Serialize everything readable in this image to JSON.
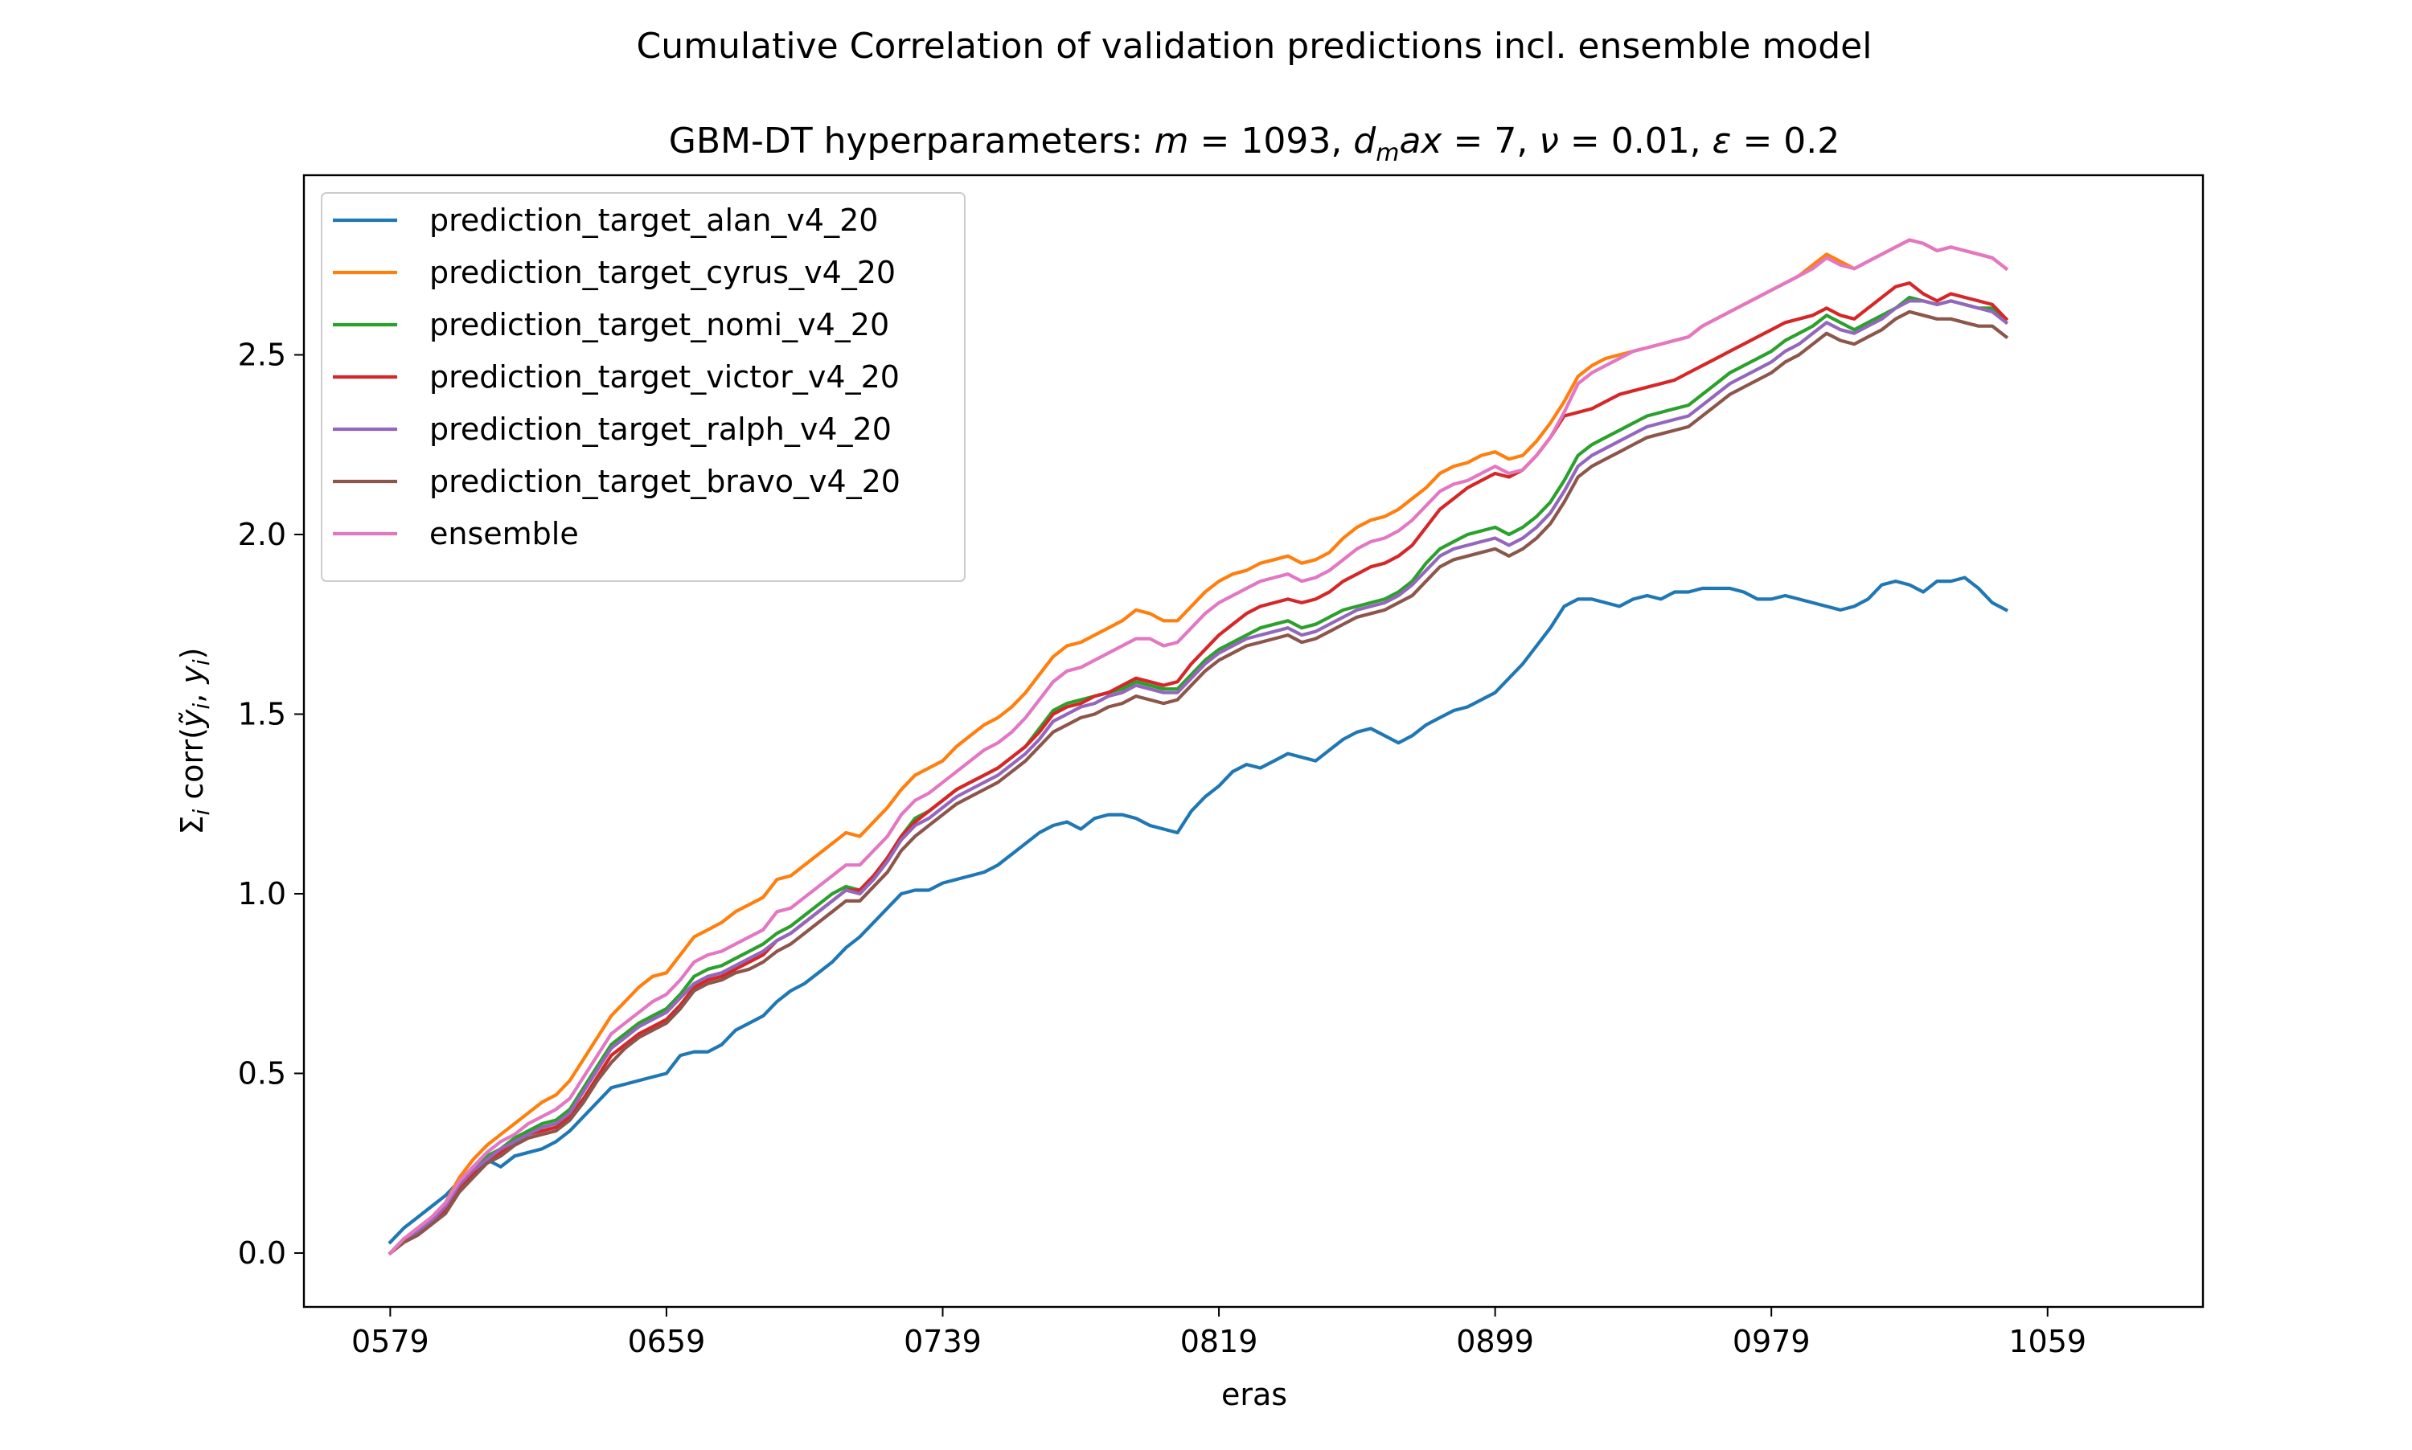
{
  "chart_data": {
    "type": "line",
    "suptitle": "Cumulative Correlation of validation predictions incl. ensemble model",
    "title": "GBM-DT hyperparameters: m = 1093, d_max = 7, ν = 0.01, ε = 0.2",
    "title_parts": {
      "prefix": "GBM-DT hyperparameters: ",
      "m_sym": "m",
      "m_val": " = 1093, ",
      "d_sym": "d",
      "d_sub": "m",
      "d_rest": "ax",
      "d_val": " = 7, ",
      "nu_sym": "ν",
      "nu_val": " = 0.01, ",
      "eps_sym": "ε",
      "eps_val": " = 0.2"
    },
    "xlabel": "eras",
    "ylabel_parts": {
      "sigma": "Σ",
      "i1": "i",
      "corr": " corr(",
      "yhat": "ỹ",
      "i2": "i",
      "sep": ", ",
      "y": "y",
      "i3": "i",
      "close": ")"
    },
    "xlim": [
      554,
      1104
    ],
    "ylim": [
      -0.15,
      3.0
    ],
    "x_ticks": [
      579,
      659,
      739,
      819,
      899,
      979,
      1059
    ],
    "x_tick_labels": [
      "0579",
      "0659",
      "0739",
      "0819",
      "0899",
      "0979",
      "1059"
    ],
    "y_ticks": [
      0.0,
      0.5,
      1.0,
      1.5,
      2.0,
      2.5
    ],
    "y_tick_labels": [
      "0.0",
      "0.5",
      "1.0",
      "1.5",
      "2.0",
      "2.5"
    ],
    "grid": false,
    "legend_position": "upper-left",
    "x_start": 579,
    "x_step": 4,
    "series": [
      {
        "name": "prediction_target_alan_v4_20",
        "color": "#1f77b4",
        "values": [
          0.03,
          0.07,
          0.1,
          0.13,
          0.16,
          0.2,
          0.22,
          0.26,
          0.24,
          0.27,
          0.28,
          0.29,
          0.31,
          0.34,
          0.38,
          0.42,
          0.46,
          0.47,
          0.48,
          0.49,
          0.5,
          0.55,
          0.56,
          0.56,
          0.58,
          0.62,
          0.64,
          0.66,
          0.7,
          0.73,
          0.75,
          0.78,
          0.81,
          0.85,
          0.88,
          0.92,
          0.96,
          1.0,
          1.01,
          1.01,
          1.03,
          1.04,
          1.05,
          1.06,
          1.08,
          1.11,
          1.14,
          1.17,
          1.19,
          1.2,
          1.18,
          1.21,
          1.22,
          1.22,
          1.21,
          1.19,
          1.18,
          1.17,
          1.23,
          1.27,
          1.3,
          1.34,
          1.36,
          1.35,
          1.37,
          1.39,
          1.38,
          1.37,
          1.4,
          1.43,
          1.45,
          1.46,
          1.44,
          1.42,
          1.44,
          1.47,
          1.49,
          1.51,
          1.52,
          1.54,
          1.56,
          1.6,
          1.64,
          1.69,
          1.74,
          1.8,
          1.82,
          1.82,
          1.81,
          1.8,
          1.82,
          1.83,
          1.82,
          1.84,
          1.84,
          1.85,
          1.85,
          1.85,
          1.84,
          1.82,
          1.82,
          1.83,
          1.82,
          1.81,
          1.8,
          1.79,
          1.8,
          1.82,
          1.86,
          1.87,
          1.86,
          1.84,
          1.87,
          1.87,
          1.88,
          1.85,
          1.81,
          1.79
        ]
      },
      {
        "name": "prediction_target_cyrus_v4_20",
        "color": "#ff7f0e",
        "values": [
          0.0,
          0.04,
          0.07,
          0.1,
          0.14,
          0.21,
          0.26,
          0.3,
          0.33,
          0.36,
          0.39,
          0.42,
          0.44,
          0.48,
          0.54,
          0.6,
          0.66,
          0.7,
          0.74,
          0.77,
          0.78,
          0.83,
          0.88,
          0.9,
          0.92,
          0.95,
          0.97,
          0.99,
          1.04,
          1.05,
          1.08,
          1.11,
          1.14,
          1.17,
          1.16,
          1.2,
          1.24,
          1.29,
          1.33,
          1.35,
          1.37,
          1.41,
          1.44,
          1.47,
          1.49,
          1.52,
          1.56,
          1.61,
          1.66,
          1.69,
          1.7,
          1.72,
          1.74,
          1.76,
          1.79,
          1.78,
          1.76,
          1.76,
          1.8,
          1.84,
          1.87,
          1.89,
          1.9,
          1.92,
          1.93,
          1.94,
          1.92,
          1.93,
          1.95,
          1.99,
          2.02,
          2.04,
          2.05,
          2.07,
          2.1,
          2.13,
          2.17,
          2.19,
          2.2,
          2.22,
          2.23,
          2.21,
          2.22,
          2.26,
          2.31,
          2.37,
          2.44,
          2.47,
          2.49,
          2.5,
          2.51,
          2.52,
          2.53,
          2.54,
          2.55,
          2.58,
          2.6,
          2.62,
          2.64,
          2.66,
          2.68,
          2.7,
          2.72,
          2.75,
          2.78,
          2.76,
          2.74,
          2.76,
          2.78,
          2.8,
          2.82,
          2.81,
          2.79,
          2.8,
          2.79,
          2.78,
          2.77,
          2.74
        ]
      },
      {
        "name": "prediction_target_nomi_v4_20",
        "color": "#2ca02c",
        "values": [
          0.0,
          0.04,
          0.06,
          0.09,
          0.13,
          0.19,
          0.23,
          0.27,
          0.29,
          0.32,
          0.34,
          0.36,
          0.37,
          0.4,
          0.46,
          0.52,
          0.58,
          0.61,
          0.64,
          0.66,
          0.68,
          0.72,
          0.77,
          0.79,
          0.8,
          0.82,
          0.84,
          0.86,
          0.89,
          0.91,
          0.94,
          0.97,
          1.0,
          1.02,
          1.01,
          1.05,
          1.1,
          1.16,
          1.21,
          1.23,
          1.26,
          1.29,
          1.31,
          1.33,
          1.35,
          1.38,
          1.41,
          1.46,
          1.51,
          1.53,
          1.54,
          1.55,
          1.56,
          1.57,
          1.59,
          1.58,
          1.57,
          1.57,
          1.61,
          1.65,
          1.68,
          1.7,
          1.72,
          1.74,
          1.75,
          1.76,
          1.74,
          1.75,
          1.77,
          1.79,
          1.8,
          1.81,
          1.82,
          1.84,
          1.87,
          1.92,
          1.96,
          1.98,
          2.0,
          2.01,
          2.02,
          2.0,
          2.02,
          2.05,
          2.09,
          2.15,
          2.22,
          2.25,
          2.27,
          2.29,
          2.31,
          2.33,
          2.34,
          2.35,
          2.36,
          2.39,
          2.42,
          2.45,
          2.47,
          2.49,
          2.51,
          2.54,
          2.56,
          2.58,
          2.61,
          2.59,
          2.57,
          2.59,
          2.61,
          2.63,
          2.66,
          2.65,
          2.64,
          2.65,
          2.64,
          2.63,
          2.63,
          2.6
        ]
      },
      {
        "name": "prediction_target_victor_v4_20",
        "color": "#d62728",
        "values": [
          0.0,
          0.03,
          0.05,
          0.08,
          0.12,
          0.18,
          0.22,
          0.26,
          0.28,
          0.31,
          0.33,
          0.34,
          0.35,
          0.38,
          0.43,
          0.49,
          0.55,
          0.58,
          0.61,
          0.63,
          0.65,
          0.69,
          0.74,
          0.76,
          0.77,
          0.79,
          0.81,
          0.83,
          0.87,
          0.89,
          0.92,
          0.95,
          0.98,
          1.01,
          1.01,
          1.05,
          1.1,
          1.16,
          1.2,
          1.23,
          1.26,
          1.29,
          1.31,
          1.33,
          1.35,
          1.38,
          1.41,
          1.45,
          1.5,
          1.52,
          1.53,
          1.55,
          1.56,
          1.58,
          1.6,
          1.59,
          1.58,
          1.59,
          1.64,
          1.68,
          1.72,
          1.75,
          1.78,
          1.8,
          1.81,
          1.82,
          1.81,
          1.82,
          1.84,
          1.87,
          1.89,
          1.91,
          1.92,
          1.94,
          1.97,
          2.02,
          2.07,
          2.1,
          2.13,
          2.15,
          2.17,
          2.16,
          2.18,
          2.22,
          2.27,
          2.33,
          2.34,
          2.35,
          2.37,
          2.39,
          2.4,
          2.41,
          2.42,
          2.43,
          2.45,
          2.47,
          2.49,
          2.51,
          2.53,
          2.55,
          2.57,
          2.59,
          2.6,
          2.61,
          2.63,
          2.61,
          2.6,
          2.63,
          2.66,
          2.69,
          2.7,
          2.67,
          2.65,
          2.67,
          2.66,
          2.65,
          2.64,
          2.6
        ]
      },
      {
        "name": "prediction_target_ralph_v4_20",
        "color": "#9467bd",
        "values": [
          0.0,
          0.04,
          0.06,
          0.09,
          0.13,
          0.19,
          0.23,
          0.26,
          0.29,
          0.31,
          0.33,
          0.35,
          0.36,
          0.39,
          0.45,
          0.51,
          0.57,
          0.6,
          0.63,
          0.65,
          0.67,
          0.71,
          0.75,
          0.77,
          0.78,
          0.8,
          0.82,
          0.84,
          0.87,
          0.89,
          0.92,
          0.95,
          0.98,
          1.01,
          1.0,
          1.04,
          1.09,
          1.15,
          1.19,
          1.21,
          1.24,
          1.27,
          1.29,
          1.31,
          1.33,
          1.36,
          1.39,
          1.43,
          1.48,
          1.5,
          1.52,
          1.53,
          1.55,
          1.56,
          1.58,
          1.57,
          1.56,
          1.56,
          1.6,
          1.64,
          1.67,
          1.69,
          1.71,
          1.72,
          1.73,
          1.74,
          1.72,
          1.73,
          1.75,
          1.77,
          1.79,
          1.8,
          1.81,
          1.83,
          1.86,
          1.9,
          1.94,
          1.96,
          1.97,
          1.98,
          1.99,
          1.97,
          1.99,
          2.02,
          2.06,
          2.12,
          2.19,
          2.22,
          2.24,
          2.26,
          2.28,
          2.3,
          2.31,
          2.32,
          2.33,
          2.36,
          2.39,
          2.42,
          2.44,
          2.46,
          2.48,
          2.51,
          2.53,
          2.56,
          2.59,
          2.57,
          2.56,
          2.58,
          2.6,
          2.63,
          2.65,
          2.65,
          2.64,
          2.65,
          2.64,
          2.63,
          2.62,
          2.59
        ]
      },
      {
        "name": "prediction_target_bravo_v4_20",
        "color": "#8c564b",
        "values": [
          0.0,
          0.03,
          0.05,
          0.08,
          0.11,
          0.17,
          0.21,
          0.25,
          0.27,
          0.3,
          0.32,
          0.33,
          0.34,
          0.37,
          0.42,
          0.48,
          0.53,
          0.57,
          0.6,
          0.62,
          0.64,
          0.68,
          0.73,
          0.75,
          0.76,
          0.78,
          0.79,
          0.81,
          0.84,
          0.86,
          0.89,
          0.92,
          0.95,
          0.98,
          0.98,
          1.02,
          1.06,
          1.12,
          1.16,
          1.19,
          1.22,
          1.25,
          1.27,
          1.29,
          1.31,
          1.34,
          1.37,
          1.41,
          1.45,
          1.47,
          1.49,
          1.5,
          1.52,
          1.53,
          1.55,
          1.54,
          1.53,
          1.54,
          1.58,
          1.62,
          1.65,
          1.67,
          1.69,
          1.7,
          1.71,
          1.72,
          1.7,
          1.71,
          1.73,
          1.75,
          1.77,
          1.78,
          1.79,
          1.81,
          1.83,
          1.87,
          1.91,
          1.93,
          1.94,
          1.95,
          1.96,
          1.94,
          1.96,
          1.99,
          2.03,
          2.09,
          2.16,
          2.19,
          2.21,
          2.23,
          2.25,
          2.27,
          2.28,
          2.29,
          2.3,
          2.33,
          2.36,
          2.39,
          2.41,
          2.43,
          2.45,
          2.48,
          2.5,
          2.53,
          2.56,
          2.54,
          2.53,
          2.55,
          2.57,
          2.6,
          2.62,
          2.61,
          2.6,
          2.6,
          2.59,
          2.58,
          2.58,
          2.55
        ]
      },
      {
        "name": "ensemble",
        "color": "#e377c2",
        "values": [
          0.0,
          0.04,
          0.07,
          0.1,
          0.14,
          0.2,
          0.24,
          0.28,
          0.31,
          0.33,
          0.36,
          0.38,
          0.4,
          0.43,
          0.49,
          0.55,
          0.61,
          0.64,
          0.67,
          0.7,
          0.72,
          0.76,
          0.81,
          0.83,
          0.84,
          0.86,
          0.88,
          0.9,
          0.95,
          0.96,
          0.99,
          1.02,
          1.05,
          1.08,
          1.08,
          1.12,
          1.16,
          1.22,
          1.26,
          1.28,
          1.31,
          1.34,
          1.37,
          1.4,
          1.42,
          1.45,
          1.49,
          1.54,
          1.59,
          1.62,
          1.63,
          1.65,
          1.67,
          1.69,
          1.71,
          1.71,
          1.69,
          1.7,
          1.74,
          1.78,
          1.81,
          1.83,
          1.85,
          1.87,
          1.88,
          1.89,
          1.87,
          1.88,
          1.9,
          1.93,
          1.96,
          1.98,
          1.99,
          2.01,
          2.04,
          2.08,
          2.12,
          2.14,
          2.15,
          2.17,
          2.19,
          2.17,
          2.18,
          2.22,
          2.27,
          2.34,
          2.42,
          2.45,
          2.47,
          2.49,
          2.51,
          2.52,
          2.53,
          2.54,
          2.55,
          2.58,
          2.6,
          2.62,
          2.64,
          2.66,
          2.68,
          2.7,
          2.72,
          2.74,
          2.77,
          2.75,
          2.74,
          2.76,
          2.78,
          2.8,
          2.82,
          2.81,
          2.79,
          2.8,
          2.79,
          2.78,
          2.77,
          2.74
        ]
      }
    ]
  }
}
